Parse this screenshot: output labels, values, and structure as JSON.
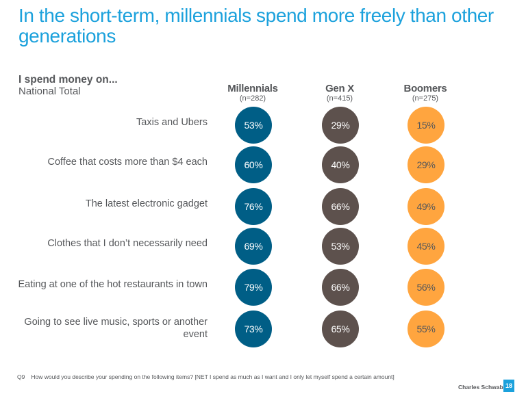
{
  "slide": {
    "title": "In the short-term, millennials spend more freely than other generations",
    "question_heading": "I spend money on...",
    "subheading": "National Total",
    "footnote_qnum": "Q9",
    "footnote_text": "How would you describe your spending on the following items? [NET I spend as much as I want and I only let myself spend a certain amount]",
    "brand": "Charles Schwab",
    "page_number": "18"
  },
  "chart_data": {
    "type": "table",
    "title": "In the short-term, millennials spend more freely than other generations",
    "row_header": "I spend money on...",
    "subtitle": "National Total",
    "categories": [
      [
        "Taxis and Ubers"
      ],
      [
        "Coffee that costs more than $4 each"
      ],
      [
        "The latest electronic gadget"
      ],
      [
        "Clothes that I don’t necessarily need"
      ],
      [
        "Eating at one of the hot restaurants in town"
      ],
      [
        "Going to see live music, sports or another",
        "event"
      ]
    ],
    "unit": "%",
    "series": [
      {
        "name": "Millennials",
        "sample": "(n=282)",
        "color": "#005e86",
        "text_color": "#ffffff",
        "values": [
          53,
          60,
          76,
          69,
          79,
          73
        ]
      },
      {
        "name": "Gen X",
        "sample": "(n=415)",
        "color": "#5d514d",
        "text_color": "#ffffff",
        "values": [
          29,
          40,
          66,
          53,
          66,
          65
        ]
      },
      {
        "name": "Boomers",
        "sample": "(n=275)",
        "color": "#ffa53f",
        "text_color": "#55575a",
        "values": [
          15,
          29,
          49,
          45,
          56,
          55
        ]
      }
    ]
  }
}
